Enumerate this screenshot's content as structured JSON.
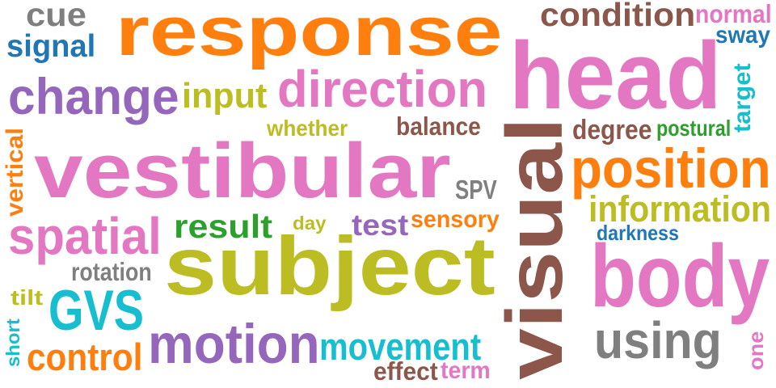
{
  "words": [
    {
      "text": "response",
      "color": "#ff7f0e"
    },
    {
      "text": "head",
      "color": "#e377c2"
    },
    {
      "text": "vestibular",
      "color": "#e377c2"
    },
    {
      "text": "subject",
      "color": "#bcbd22"
    },
    {
      "text": "visual",
      "color": "#8c564b"
    },
    {
      "text": "body",
      "color": "#e377c2"
    },
    {
      "text": "position",
      "color": "#ff7f0e"
    },
    {
      "text": "direction",
      "color": "#e377c2"
    },
    {
      "text": "change",
      "color": "#9467bd"
    },
    {
      "text": "motion",
      "color": "#9467bd"
    },
    {
      "text": "spatial",
      "color": "#e377c2"
    },
    {
      "text": "using",
      "color": "#7f7f7f"
    },
    {
      "text": "information",
      "color": "#bcbd22"
    },
    {
      "text": "condition",
      "color": "#8c564b"
    },
    {
      "text": "GVS",
      "color": "#17becf"
    },
    {
      "text": "control",
      "color": "#ff7f0e"
    },
    {
      "text": "movement",
      "color": "#17becf"
    },
    {
      "text": "result",
      "color": "#2ca02c"
    },
    {
      "text": "input",
      "color": "#bcbd22"
    },
    {
      "text": "signal",
      "color": "#1f77b4"
    },
    {
      "text": "cue",
      "color": "#7f7f7f"
    },
    {
      "text": "test",
      "color": "#9467bd"
    },
    {
      "text": "degree",
      "color": "#8c564b"
    },
    {
      "text": "rotation",
      "color": "#7f7f7f"
    },
    {
      "text": "normal",
      "color": "#e377c2"
    },
    {
      "text": "balance",
      "color": "#8c564b"
    },
    {
      "text": "sensory",
      "color": "#ff7f0e"
    },
    {
      "text": "effect",
      "color": "#8c564b"
    },
    {
      "text": "sway",
      "color": "#1f77b4"
    },
    {
      "text": "whether",
      "color": "#bcbd22"
    },
    {
      "text": "postural",
      "color": "#2ca02c"
    },
    {
      "text": "term",
      "color": "#e377c2"
    },
    {
      "text": "darkness",
      "color": "#1f77b4"
    },
    {
      "text": "SPV",
      "color": "#7f7f7f"
    },
    {
      "text": "day",
      "color": "#bcbd22"
    },
    {
      "text": "tilt",
      "color": "#bcbd22"
    },
    {
      "text": "vertical",
      "color": "#ff7f0e"
    },
    {
      "text": "target",
      "color": "#17becf"
    },
    {
      "text": "short",
      "color": "#17becf"
    },
    {
      "text": "one",
      "color": "#e377c2"
    }
  ]
}
